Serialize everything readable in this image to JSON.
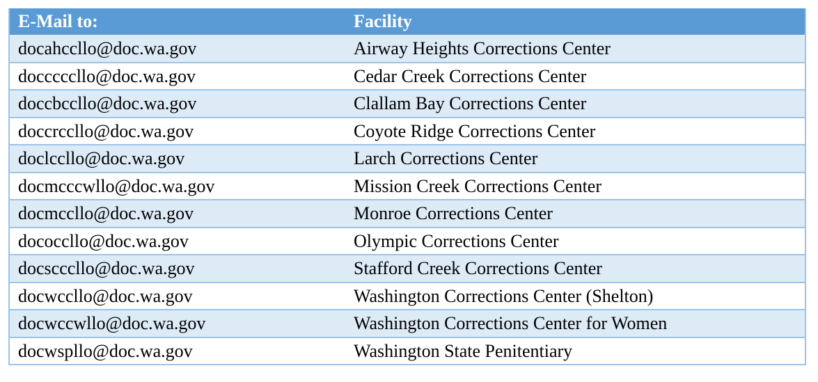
{
  "colors": {
    "header_bg": "#5b9bd5",
    "stripe_bg": "#ddebf7",
    "plain_bg": "#ffffff",
    "grid_line": "#9dc3e6"
  },
  "table": {
    "headers": {
      "email": "E-Mail to:",
      "facility": "Facility"
    },
    "rows": [
      {
        "email": "docahccllo@doc.wa.gov",
        "facility": "Airway Heights Corrections Center"
      },
      {
        "email": "docccccllo@doc.wa.gov",
        "facility": "Cedar Creek Corrections Center"
      },
      {
        "email": "doccbccllo@doc.wa.gov",
        "facility": "Clallam Bay Corrections Center"
      },
      {
        "email": "doccrccllo@doc.wa.gov",
        "facility": "Coyote Ridge Corrections Center"
      },
      {
        "email": "doclccllo@doc.wa.gov",
        "facility": "Larch Corrections Center"
      },
      {
        "email": "docmcccwllo@doc.wa.gov",
        "facility": "Mission Creek Corrections Center"
      },
      {
        "email": "docmccllo@doc.wa.gov",
        "facility": "Monroe Corrections Center"
      },
      {
        "email": "dococcllo@doc.wa.gov",
        "facility": "Olympic Corrections Center"
      },
      {
        "email": "docscccllo@doc.wa.gov",
        "facility": "Stafford Creek Corrections Center"
      },
      {
        "email": "docwccllo@doc.wa.gov",
        "facility": "Washington Corrections Center (Shelton)"
      },
      {
        "email": "docwccwllo@doc.wa.gov",
        "facility": "Washington Corrections Center for Women"
      },
      {
        "email": "docwspllo@doc.wa.gov",
        "facility": "Washington State Penitentiary"
      }
    ]
  }
}
